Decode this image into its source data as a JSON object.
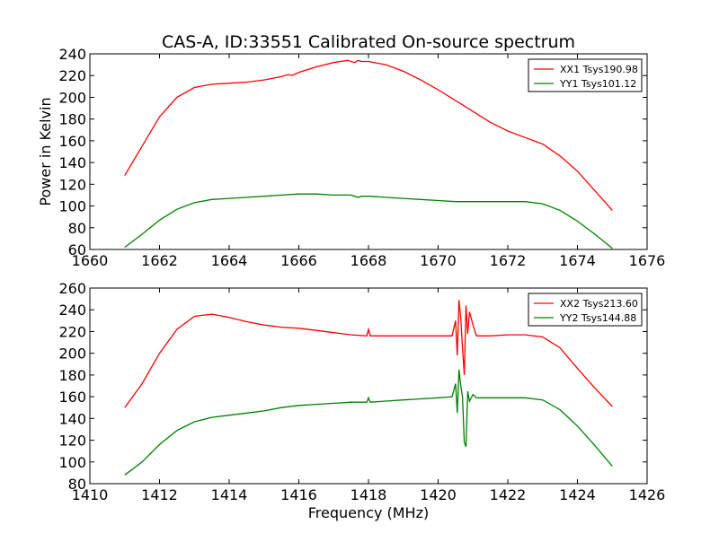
{
  "chart_data": [
    {
      "type": "line",
      "title": "CAS-A, ID:33551 Calibrated On-source spectrum",
      "xlabel": "",
      "ylabel": "Power in Kelvin",
      "xlim": [
        1660,
        1676
      ],
      "ylim": [
        60,
        240
      ],
      "xticks": [
        1660,
        1662,
        1664,
        1666,
        1668,
        1670,
        1672,
        1674,
        1676
      ],
      "yticks": [
        60,
        80,
        100,
        120,
        140,
        160,
        180,
        200,
        220,
        240
      ],
      "legend_position": "top-right",
      "series": [
        {
          "name": "XX1 Tsys190.98",
          "color": "#ff0000",
          "x": [
            1661.0,
            1661.5,
            1662.0,
            1662.5,
            1663.0,
            1663.5,
            1664.0,
            1664.5,
            1665.0,
            1665.5,
            1665.7,
            1665.8,
            1666.0,
            1666.5,
            1667.0,
            1667.4,
            1667.6,
            1667.7,
            1667.8,
            1668.0,
            1668.5,
            1669.0,
            1669.5,
            1670.0,
            1670.5,
            1671.0,
            1671.5,
            1672.0,
            1672.5,
            1673.0,
            1673.5,
            1674.0,
            1674.5,
            1675.0
          ],
          "y": [
            128,
            155,
            182,
            200,
            209,
            212,
            213,
            214,
            216,
            219,
            221,
            220,
            223,
            228,
            232,
            234,
            232,
            234,
            233,
            233,
            230,
            224,
            216,
            207,
            197,
            187,
            177,
            169,
            163,
            157,
            146,
            132,
            114,
            96
          ]
        },
        {
          "name": "YY1 Tsys101.12",
          "color": "#008000",
          "x": [
            1661.0,
            1661.5,
            1662.0,
            1662.5,
            1663.0,
            1663.5,
            1664.0,
            1664.5,
            1665.0,
            1665.5,
            1666.0,
            1666.5,
            1667.0,
            1667.5,
            1667.7,
            1667.8,
            1668.0,
            1668.5,
            1669.0,
            1669.5,
            1670.0,
            1670.5,
            1671.0,
            1671.5,
            1672.0,
            1672.5,
            1673.0,
            1673.5,
            1674.0,
            1674.5,
            1675.0
          ],
          "y": [
            62,
            74,
            87,
            97,
            103,
            106,
            107,
            108,
            109,
            110,
            111,
            111,
            110,
            110,
            108,
            109,
            109,
            108,
            107,
            106,
            105,
            104,
            104,
            104,
            104,
            104,
            102,
            96,
            86,
            74,
            61
          ]
        }
      ]
    },
    {
      "type": "line",
      "title": "",
      "xlabel": "Frequency (MHz)",
      "ylabel": "",
      "xlim": [
        1410,
        1426
      ],
      "ylim": [
        80,
        260
      ],
      "xticks": [
        1410,
        1412,
        1414,
        1416,
        1418,
        1420,
        1422,
        1424,
        1426
      ],
      "yticks": [
        80,
        100,
        120,
        140,
        160,
        180,
        200,
        220,
        240,
        260
      ],
      "legend_position": "top-right",
      "series": [
        {
          "name": "XX2 Tsys213.60",
          "color": "#ff0000",
          "x": [
            1411.0,
            1411.5,
            1412.0,
            1412.5,
            1413.0,
            1413.5,
            1414.0,
            1414.5,
            1415.0,
            1415.5,
            1416.0,
            1416.5,
            1417.0,
            1417.5,
            1417.95,
            1418.0,
            1418.05,
            1418.5,
            1419.0,
            1419.5,
            1420.0,
            1420.4,
            1420.5,
            1420.55,
            1420.6,
            1420.65,
            1420.7,
            1420.75,
            1420.8,
            1420.85,
            1420.9,
            1421.0,
            1421.1,
            1421.5,
            1422.0,
            1422.5,
            1423.0,
            1423.5,
            1424.0,
            1424.5,
            1425.0
          ],
          "y": [
            150,
            172,
            200,
            222,
            234,
            236,
            233,
            229,
            226,
            224,
            223,
            221,
            219,
            217,
            216,
            222,
            216,
            216,
            216,
            216,
            216,
            216,
            230,
            198,
            249,
            232,
            205,
            180,
            244,
            218,
            238,
            226,
            216,
            216,
            217,
            217,
            215,
            205,
            186,
            168,
            151
          ]
        },
        {
          "name": "YY2 Tsys144.88",
          "color": "#008000",
          "x": [
            1411.0,
            1411.5,
            1412.0,
            1412.5,
            1413.0,
            1413.5,
            1414.0,
            1414.5,
            1415.0,
            1415.5,
            1416.0,
            1416.5,
            1417.0,
            1417.5,
            1417.95,
            1418.0,
            1418.05,
            1418.5,
            1419.0,
            1419.5,
            1420.0,
            1420.4,
            1420.5,
            1420.55,
            1420.6,
            1420.65,
            1420.7,
            1420.75,
            1420.8,
            1420.85,
            1420.9,
            1421.0,
            1421.1,
            1421.5,
            1422.0,
            1422.5,
            1423.0,
            1423.5,
            1424.0,
            1424.5,
            1425.0
          ],
          "y": [
            88,
            100,
            116,
            129,
            137,
            141,
            143,
            145,
            147,
            150,
            152,
            153,
            154,
            155,
            155,
            159,
            155,
            156,
            157,
            158,
            159,
            160,
            172,
            145,
            185,
            170,
            160,
            118,
            114,
            165,
            156,
            162,
            159,
            159,
            159,
            159,
            157,
            148,
            133,
            115,
            96
          ]
        }
      ]
    }
  ]
}
